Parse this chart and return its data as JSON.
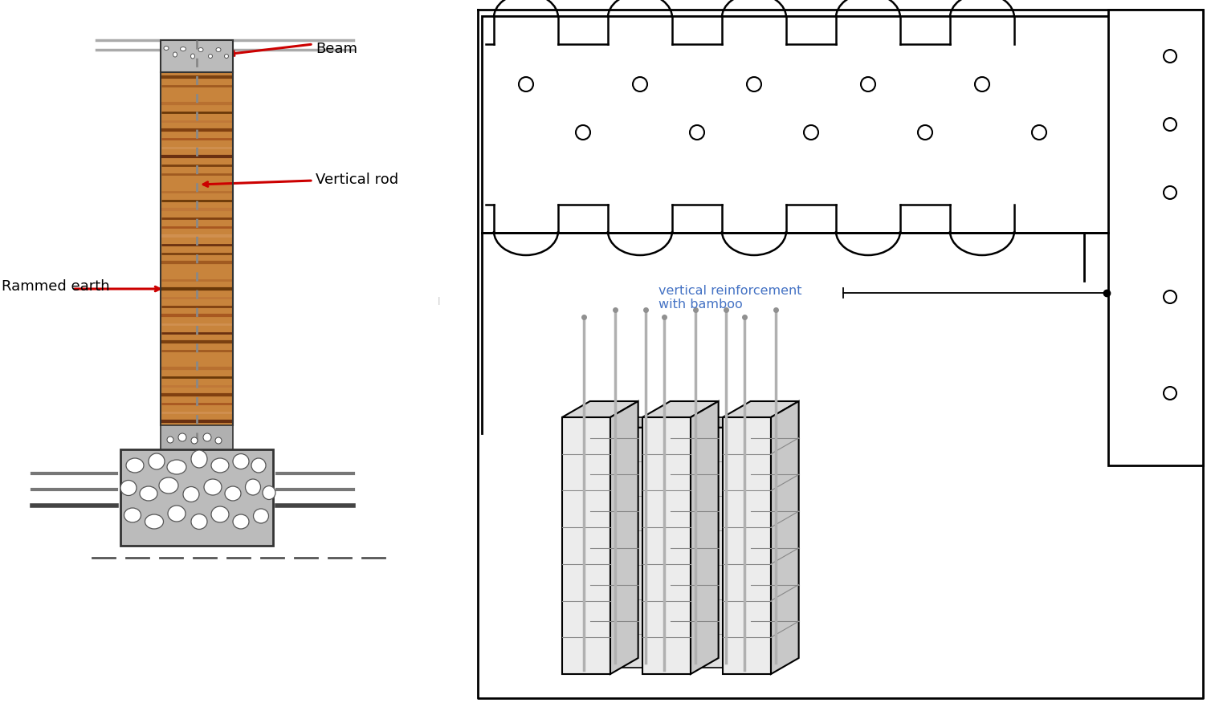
{
  "bg_color": "#ffffff",
  "fig_width": 15.08,
  "fig_height": 8.96,
  "left": {
    "label_beam": "Beam",
    "label_vertical_rod": "Vertical rod",
    "label_rammed_earth": "Rammed earth",
    "arrow_color": "#cc0000",
    "label_color": "#000000",
    "wood_light": "#c8843c",
    "wood_dark": "#7a4010",
    "wood_mid": "#a05a20",
    "gravel_bg": "#c8c8c8",
    "stone_fill": "#ffffff",
    "stone_edge": "#444444"
  },
  "right": {
    "label_text": "vertical reinforcement\nwith bamboo",
    "label_color": "#4472c4",
    "line_color": "#000000"
  }
}
